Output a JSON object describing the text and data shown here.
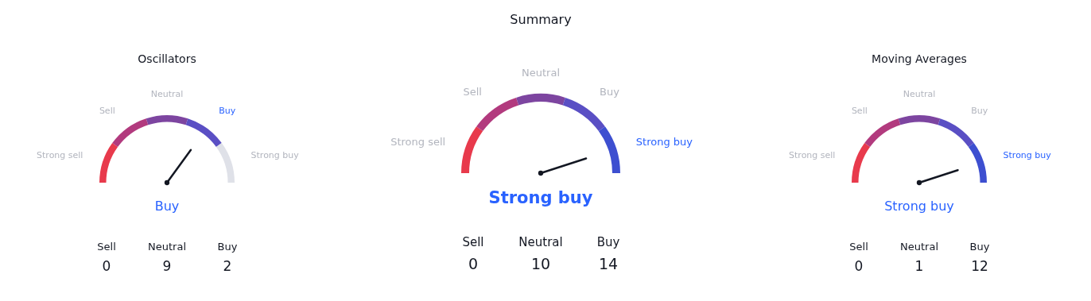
{
  "chart_data": [
    {
      "type": "donut",
      "title": "Oscillators",
      "categories": [
        "Strong sell",
        "Sell",
        "Neutral",
        "Buy",
        "Strong buy"
      ],
      "values": [
        20,
        20,
        20,
        20,
        20
      ],
      "colors": [
        "#e83a4c",
        "#b23a7e",
        "#7d45a0",
        "#5a4fc4",
        "#dfe1e8"
      ],
      "needle": "Buy",
      "annotations": [
        "Buy",
        "Sell",
        "Neutral",
        "Buy",
        "0",
        "9",
        "2"
      ]
    },
    {
      "type": "donut",
      "title": "Summary",
      "categories": [
        "Strong sell",
        "Sell",
        "Neutral",
        "Buy",
        "Strong buy"
      ],
      "values": [
        20,
        20,
        20,
        20,
        20
      ],
      "colors": [
        "#e83a4c",
        "#b23a7e",
        "#7d45a0",
        "#5a4fc4",
        "#3d4fd0"
      ],
      "needle": "Strong buy",
      "annotations": [
        "Strong buy",
        "Sell",
        "Neutral",
        "Buy",
        "0",
        "10",
        "14"
      ]
    },
    {
      "type": "donut",
      "title": "Moving Averages",
      "categories": [
        "Strong sell",
        "Sell",
        "Neutral",
        "Buy",
        "Strong buy"
      ],
      "values": [
        20,
        20,
        20,
        20,
        20
      ],
      "colors": [
        "#e83a4c",
        "#b23a7e",
        "#7d45a0",
        "#5a4fc4",
        "#3d4fd0"
      ],
      "needle": "Strong buy",
      "annotations": [
        "Strong buy",
        "Sell",
        "Neutral",
        "Buy",
        "0",
        "1",
        "12"
      ]
    }
  ]
}
